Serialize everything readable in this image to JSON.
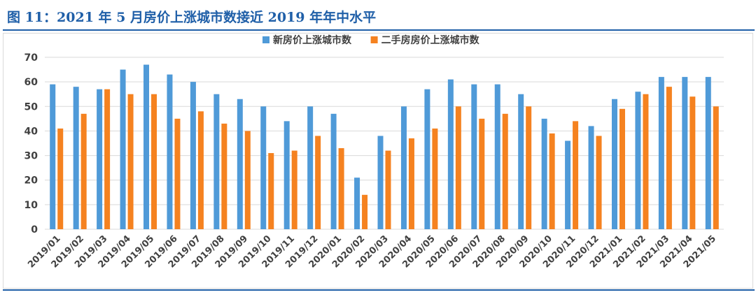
{
  "figure": {
    "title": "图 11：2021 年 5 月房价上涨城市数接近 2019 年年中水平"
  },
  "colors": {
    "series1": "#4f9ad8",
    "series2": "#f58220",
    "title": "#1f5fa8",
    "grid": "#d9d9d9"
  },
  "chart_data": {
    "type": "bar",
    "title": "",
    "xlabel": "",
    "ylabel": "",
    "ylim": [
      0,
      70
    ],
    "yticks": [
      0,
      10,
      20,
      30,
      40,
      50,
      60,
      70
    ],
    "grid": true,
    "legend_position": "top-center",
    "categories": [
      "2019/01",
      "2019/02",
      "2019/03",
      "2019/04",
      "2019/05",
      "2019/06",
      "2019/07",
      "2019/08",
      "2019/09",
      "2019/10",
      "2019/11",
      "2019/12",
      "2020/01",
      "2020/02",
      "2020/03",
      "2020/04",
      "2020/05",
      "2020/06",
      "2020/07",
      "2020/08",
      "2020/09",
      "2020/10",
      "2020/11",
      "2020/12",
      "2021/01",
      "2021/02",
      "2021/03",
      "2021/04",
      "2021/05"
    ],
    "series": [
      {
        "name": "新房价上涨城市数",
        "values": [
          59,
          58,
          57,
          65,
          67,
          63,
          60,
          55,
          53,
          50,
          44,
          50,
          47,
          21,
          38,
          50,
          57,
          61,
          59,
          59,
          55,
          45,
          36,
          42,
          53,
          56,
          62,
          62,
          62
        ]
      },
      {
        "name": "二手房房价上涨城市数",
        "values": [
          41,
          47,
          57,
          55,
          55,
          45,
          48,
          43,
          40,
          31,
          32,
          38,
          33,
          14,
          32,
          37,
          41,
          50,
          45,
          47,
          50,
          39,
          44,
          38,
          49,
          55,
          58,
          54,
          50
        ]
      }
    ]
  }
}
